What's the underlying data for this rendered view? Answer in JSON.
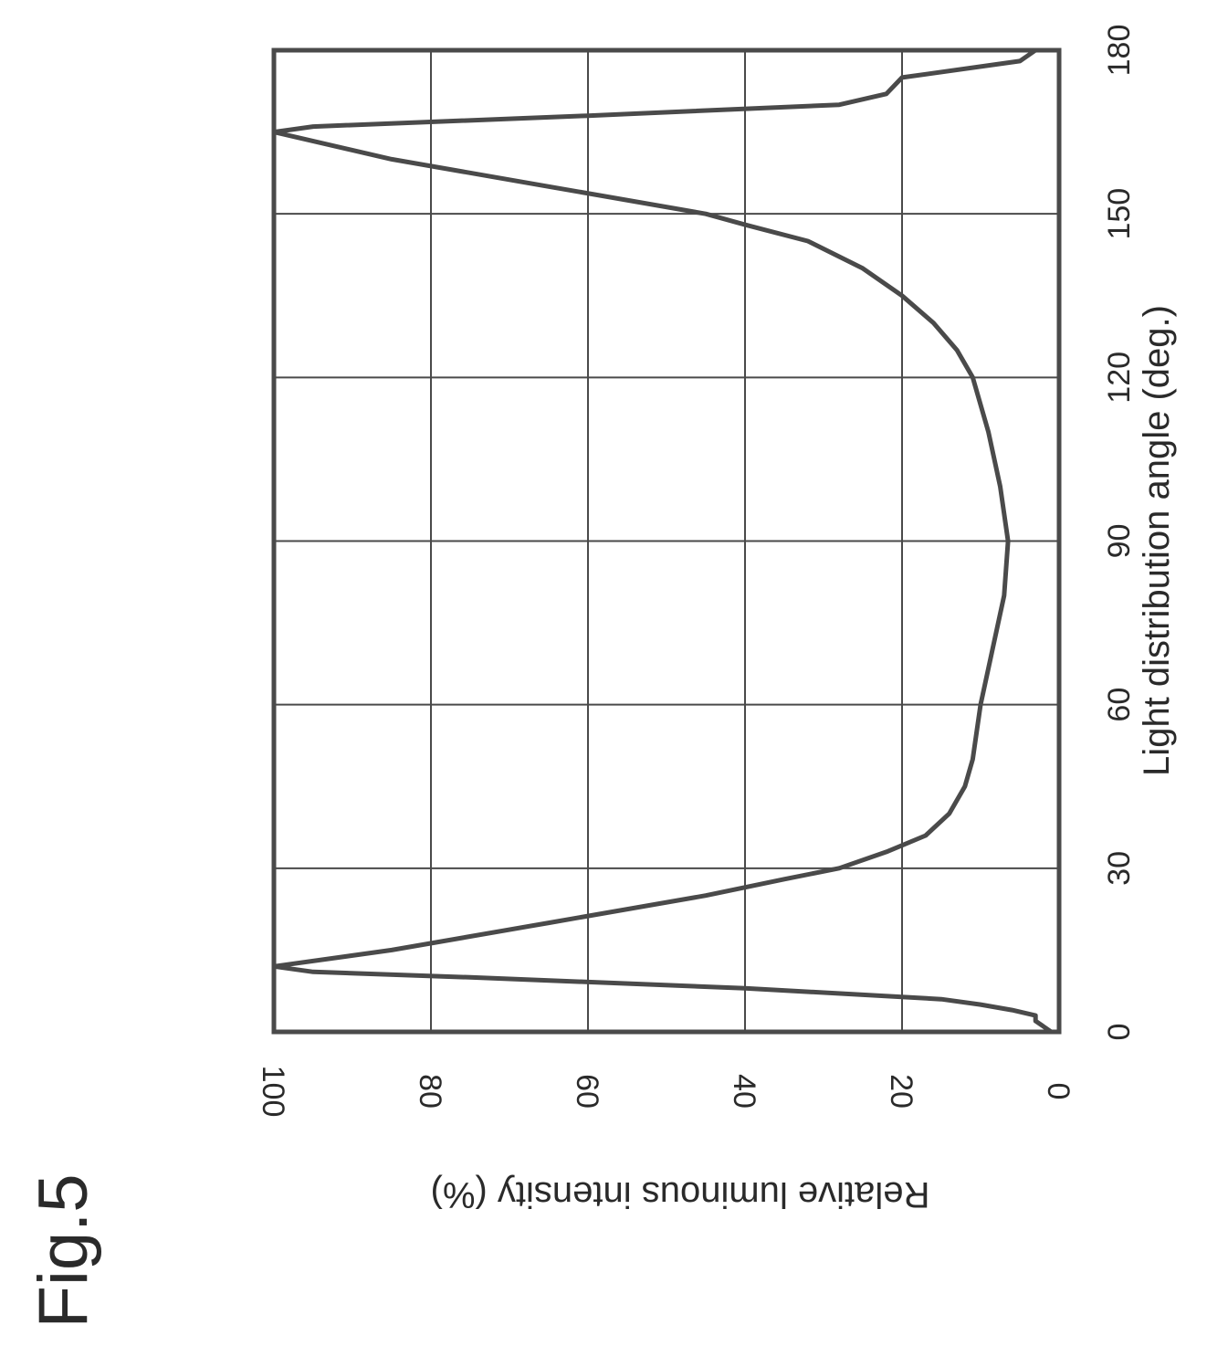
{
  "figure_label": "Fig.5",
  "chart_data": {
    "type": "line",
    "title": "",
    "xlabel": "Light distribution angle (deg.)",
    "ylabel": "Relative luminous intensity (%)",
    "xlim": [
      0,
      180
    ],
    "ylim": [
      0,
      100
    ],
    "x_ticks": [
      "0",
      "30",
      "60",
      "90",
      "120",
      "150",
      "180"
    ],
    "y_ticks": [
      "0",
      "20",
      "40",
      "60",
      "80",
      "100"
    ],
    "grid": true,
    "legend": "none",
    "series": [
      {
        "values": [
          [
            0,
            1
          ],
          [
            1,
            2
          ],
          [
            2,
            3
          ],
          [
            3,
            3
          ],
          [
            4,
            6
          ],
          [
            5,
            10
          ],
          [
            6,
            15
          ],
          [
            8,
            40
          ],
          [
            10,
            75
          ],
          [
            11,
            95
          ],
          [
            12,
            100
          ],
          [
            15,
            85
          ],
          [
            20,
            65
          ],
          [
            25,
            45
          ],
          [
            28,
            35
          ],
          [
            30,
            28
          ],
          [
            33,
            22
          ],
          [
            36,
            17
          ],
          [
            40,
            14
          ],
          [
            45,
            12
          ],
          [
            50,
            11
          ],
          [
            60,
            10
          ],
          [
            70,
            8.5
          ],
          [
            80,
            7
          ],
          [
            90,
            6.5
          ],
          [
            100,
            7.5
          ],
          [
            110,
            9
          ],
          [
            120,
            11
          ],
          [
            125,
            13
          ],
          [
            130,
            16
          ],
          [
            135,
            20
          ],
          [
            140,
            25
          ],
          [
            145,
            32
          ],
          [
            148,
            40
          ],
          [
            150,
            45
          ],
          [
            155,
            65
          ],
          [
            160,
            85
          ],
          [
            165,
            100
          ],
          [
            166,
            95
          ],
          [
            168,
            60
          ],
          [
            170,
            28
          ],
          [
            172,
            22
          ],
          [
            175,
            20
          ],
          [
            178,
            5
          ],
          [
            179,
            4
          ],
          [
            180,
            3
          ]
        ]
      }
    ]
  }
}
